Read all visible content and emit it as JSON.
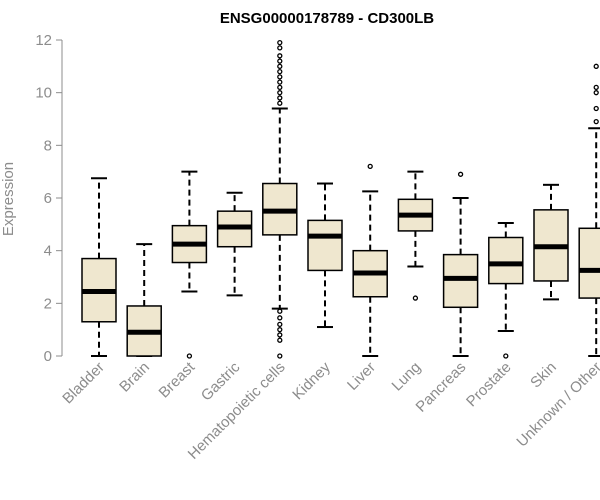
{
  "chart_data": {
    "type": "boxplot",
    "title": "ENSG00000178789 - CD300LB",
    "ylabel": "Expression",
    "xlabel": "",
    "ylim": [
      0,
      12
    ],
    "yticks": [
      0,
      2,
      4,
      6,
      8,
      10,
      12
    ],
    "colors": {
      "box_fill": "#efe7cf",
      "box_stroke": "#000000",
      "axis": "#8c8c8c"
    },
    "categories": [
      "Bladder",
      "Brain",
      "Breast",
      "Gastric",
      "Hematopoietic cells",
      "Kidney",
      "Liver",
      "Lung",
      "Pancreas",
      "Prostate",
      "Skin",
      "Unknown / Other"
    ],
    "boxes": [
      {
        "category": "Bladder",
        "whisker_low": 0.0,
        "q1": 1.3,
        "median": 2.45,
        "q3": 3.7,
        "whisker_high": 6.75,
        "outliers": []
      },
      {
        "category": "Brain",
        "whisker_low": 0.0,
        "q1": 0.0,
        "median": 0.9,
        "q3": 1.9,
        "whisker_high": 4.25,
        "outliers": []
      },
      {
        "category": "Breast",
        "whisker_low": 2.45,
        "q1": 3.55,
        "median": 4.25,
        "q3": 4.95,
        "whisker_high": 7.0,
        "outliers": [
          0.0
        ]
      },
      {
        "category": "Gastric",
        "whisker_low": 2.3,
        "q1": 4.15,
        "median": 4.9,
        "q3": 5.5,
        "whisker_high": 6.2,
        "outliers": []
      },
      {
        "category": "Hematopoietic cells",
        "whisker_low": 1.8,
        "q1": 4.6,
        "median": 5.5,
        "q3": 6.55,
        "whisker_high": 9.4,
        "outliers": [
          0.0,
          0.6,
          0.8,
          1.0,
          1.2,
          1.45,
          1.7,
          9.6,
          9.8,
          10.0,
          10.2,
          10.4,
          10.6,
          10.8,
          11.0,
          11.2,
          11.4,
          11.7,
          11.9
        ]
      },
      {
        "category": "Kidney",
        "whisker_low": 1.1,
        "q1": 3.25,
        "median": 4.55,
        "q3": 5.15,
        "whisker_high": 6.55,
        "outliers": []
      },
      {
        "category": "Liver",
        "whisker_low": 0.0,
        "q1": 2.25,
        "median": 3.15,
        "q3": 4.0,
        "whisker_high": 6.25,
        "outliers": [
          7.2
        ]
      },
      {
        "category": "Lung",
        "whisker_low": 3.4,
        "q1": 4.75,
        "median": 5.35,
        "q3": 5.95,
        "whisker_high": 7.0,
        "outliers": [
          2.2
        ]
      },
      {
        "category": "Pancreas",
        "whisker_low": 0.0,
        "q1": 1.85,
        "median": 2.95,
        "q3": 3.85,
        "whisker_high": 6.0,
        "outliers": [
          6.9
        ]
      },
      {
        "category": "Prostate",
        "whisker_low": 0.95,
        "q1": 2.75,
        "median": 3.5,
        "q3": 4.5,
        "whisker_high": 5.05,
        "outliers": [
          0.0
        ]
      },
      {
        "category": "Skin",
        "whisker_low": 2.15,
        "q1": 2.85,
        "median": 4.15,
        "q3": 5.55,
        "whisker_high": 6.5,
        "outliers": []
      },
      {
        "category": "Unknown / Other",
        "whisker_low": 0.0,
        "q1": 2.2,
        "median": 3.25,
        "q3": 4.85,
        "whisker_high": 8.65,
        "outliers": [
          8.9,
          9.4,
          10.0,
          10.2,
          11.0
        ]
      }
    ]
  }
}
